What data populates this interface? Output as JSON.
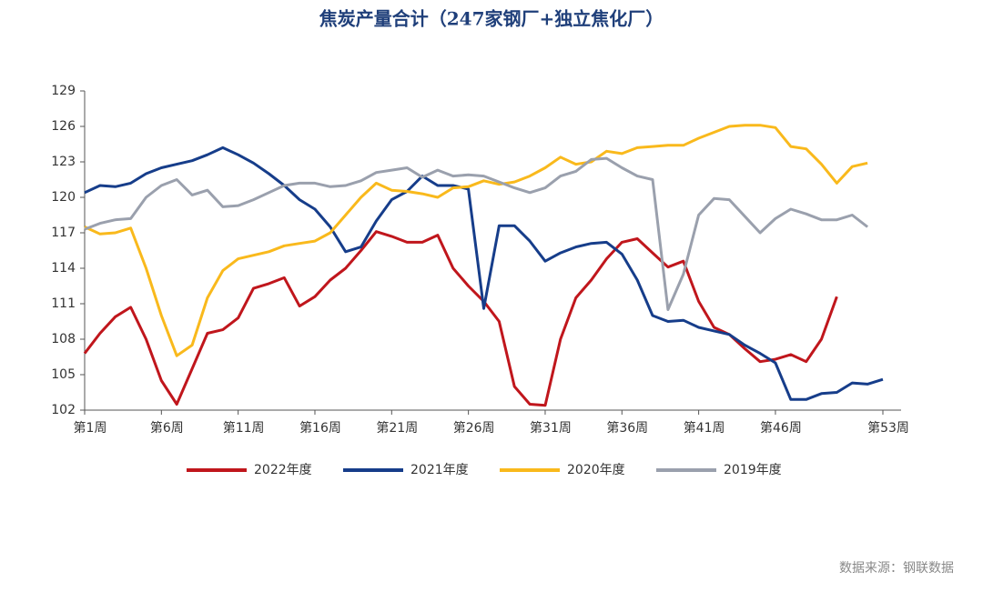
{
  "chart_data": {
    "type": "line",
    "title": "焦炭产量合计（247家钢厂+独立焦化厂）",
    "source": "数据来源：钢联数据",
    "x": [
      1,
      2,
      3,
      4,
      5,
      6,
      7,
      8,
      9,
      10,
      11,
      12,
      13,
      14,
      15,
      16,
      17,
      18,
      19,
      20,
      21,
      22,
      23,
      24,
      25,
      26,
      27,
      28,
      29,
      30,
      31,
      32,
      33,
      34,
      35,
      36,
      37,
      38,
      39,
      40,
      41,
      42,
      43,
      44,
      45,
      46,
      47,
      48,
      49,
      50,
      51,
      52,
      53
    ],
    "xlim": [
      1,
      53
    ],
    "xticks": [
      {
        "value": 1,
        "label": "第1周"
      },
      {
        "value": 6,
        "label": "第6周"
      },
      {
        "value": 11,
        "label": "第11周"
      },
      {
        "value": 16,
        "label": "第16周"
      },
      {
        "value": 21,
        "label": "第21周"
      },
      {
        "value": 26,
        "label": "第26周"
      },
      {
        "value": 31,
        "label": "第31周"
      },
      {
        "value": 36,
        "label": "第36周"
      },
      {
        "value": 41,
        "label": "第41周"
      },
      {
        "value": 46,
        "label": "第46周"
      },
      {
        "value": 53,
        "label": "第53周"
      }
    ],
    "ylim": [
      102,
      129
    ],
    "yticks": [
      102,
      105,
      108,
      111,
      114,
      117,
      120,
      123,
      126,
      129
    ],
    "legend": "bottom",
    "series": [
      {
        "name": "2022年度",
        "color": "#c0161c",
        "values": [
          106.8,
          108.5,
          109.9,
          110.7,
          108,
          104.5,
          102.5,
          105.5,
          108.5,
          108.8,
          109.8,
          112.3,
          112.7,
          113.2,
          110.8,
          111.6,
          113,
          114,
          115.5,
          117.1,
          116.7,
          116.2,
          116.2,
          116.8,
          114,
          112.5,
          111.2,
          109.5,
          104,
          102.5,
          102.4,
          108,
          111.5,
          113,
          114.8,
          116.2,
          116.5,
          115.3,
          114.1,
          114.6,
          111.2,
          109,
          108.4,
          107.2,
          106.1,
          106.3,
          106.7,
          106.1,
          108,
          111.6,
          null,
          null,
          null
        ]
      },
      {
        "name": "2021年度",
        "color": "#163d8a",
        "values": [
          120.4,
          121,
          120.9,
          121.2,
          122,
          122.5,
          122.8,
          123.1,
          123.6,
          124.2,
          123.6,
          122.9,
          122,
          121,
          119.8,
          119,
          117.5,
          115.4,
          115.8,
          118,
          119.8,
          120.5,
          121.8,
          121,
          121,
          120.7,
          110.6,
          117.6,
          117.6,
          116.3,
          114.6,
          115.3,
          115.8,
          116.1,
          116.2,
          115.2,
          113,
          110,
          109.5,
          109.6,
          109,
          108.7,
          108.4,
          107.5,
          106.8,
          106,
          102.9,
          102.9,
          103.4,
          103.5,
          104.3,
          104.2,
          104.6
        ]
      },
      {
        "name": "2020年度",
        "color": "#f9b91c",
        "values": [
          117.5,
          116.9,
          117,
          117.4,
          114,
          110,
          106.6,
          107.5,
          111.5,
          113.8,
          114.8,
          115.1,
          115.4,
          115.9,
          116.1,
          116.3,
          117,
          118.5,
          120,
          121.2,
          120.6,
          120.5,
          120.3,
          120,
          120.8,
          120.9,
          121.4,
          121.1,
          121.3,
          121.8,
          122.5,
          123.4,
          122.8,
          123,
          123.9,
          123.7,
          124.2,
          124.3,
          124.4,
          124.4,
          125,
          125.5,
          126,
          126.1,
          126.1,
          125.9,
          124.3,
          124.1,
          122.8,
          121.2,
          122.6,
          122.9,
          null
        ]
      },
      {
        "name": "2019年度",
        "color": "#9aa0ad",
        "values": [
          117.3,
          117.8,
          118.1,
          118.2,
          120,
          121,
          121.5,
          120.2,
          120.6,
          119.2,
          119.3,
          119.8,
          120.4,
          121,
          121.2,
          121.2,
          120.9,
          121,
          121.4,
          122.1,
          122.3,
          122.5,
          121.7,
          122.3,
          121.8,
          121.9,
          121.8,
          121.3,
          120.8,
          120.4,
          120.8,
          121.8,
          122.2,
          123.2,
          123.3,
          122.5,
          121.8,
          121.5,
          110.5,
          113.5,
          118.5,
          119.9,
          119.8,
          118.4,
          117,
          118.2,
          119,
          118.6,
          118.1,
          118.1,
          118.5,
          117.5,
          null
        ]
      }
    ]
  }
}
